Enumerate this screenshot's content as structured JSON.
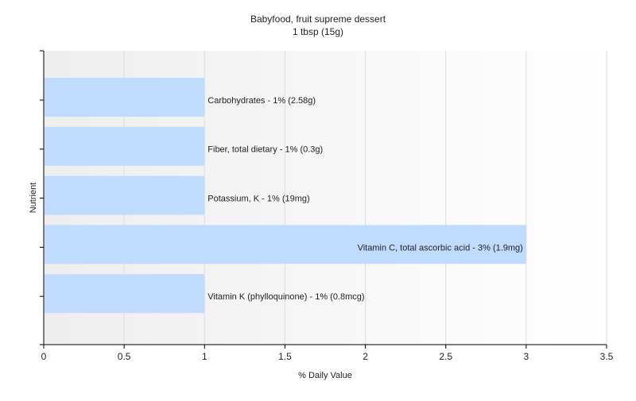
{
  "chart_data": {
    "type": "bar",
    "orientation": "horizontal",
    "title": "Babyfood, fruit supreme dessert",
    "subtitle": "1 tbsp (15g)",
    "xlabel": "% Daily Value",
    "ylabel": "Nutrient",
    "xlim": [
      0,
      3.5
    ],
    "x_ticks": [
      0,
      0.5,
      1,
      1.5,
      2,
      2.5,
      3,
      3.5
    ],
    "x_tick_labels": [
      "0",
      "0.5",
      "1",
      "1.5",
      "2",
      "2.5",
      "3",
      "3.5"
    ],
    "grid": true,
    "legend": "none",
    "categories": [
      "Carbohydrates",
      "Fiber, total dietary",
      "Potassium, K",
      "Vitamin C, total ascorbic acid",
      "Vitamin K (phylloquinone)"
    ],
    "values": [
      1,
      1,
      1,
      3,
      1
    ],
    "labels": [
      "Carbohydrates - 1% (2.58g)",
      "Fiber, total dietary - 1% (0.3g)",
      "Potassium, K - 1% (19mg)",
      "Vitamin C, total ascorbic acid - 3% (1.9mg)",
      "Vitamin K (phylloquinone) - 1% (0.8mcg)"
    ],
    "colors": {
      "bar": "#c0dbff",
      "grid": "#dddddd",
      "axis": "#000000",
      "plot_bg_left": "#eeeeee",
      "plot_bg_right": "#ffffff"
    }
  }
}
